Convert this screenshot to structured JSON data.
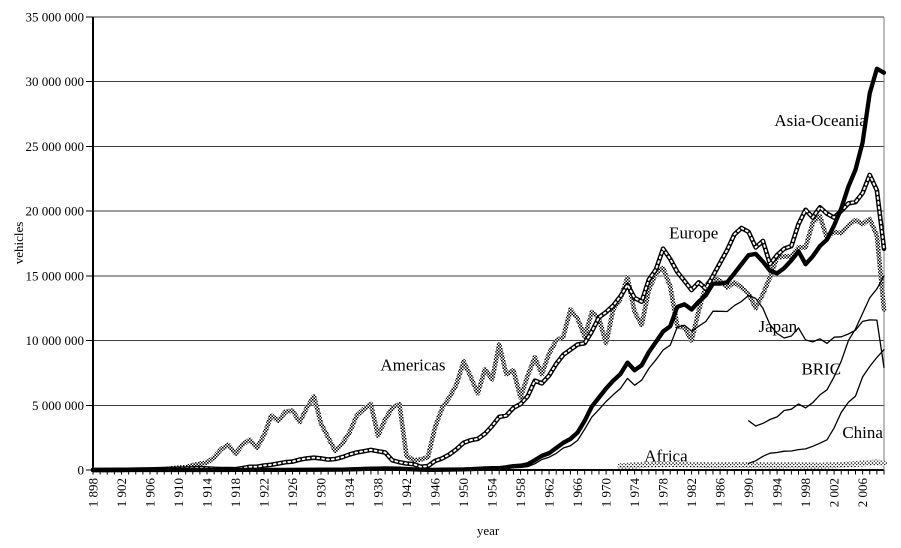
{
  "figure": {
    "background": "#ffffff",
    "line_color": "#000000",
    "grid_color": "#3f3f3f"
  },
  "chart_data": {
    "type": "line",
    "title": "",
    "xlabel": "year",
    "ylabel": "vehicles",
    "unit": "vehicles (series values stored in millions)",
    "x_range": [
      1898,
      2009
    ],
    "y_range": [
      0,
      35000000
    ],
    "grid": "horizontal",
    "legend": "inline-annotations",
    "y_ticks": {
      "values_millions": [
        0,
        5,
        10,
        15,
        20,
        25,
        30,
        35
      ],
      "labels": [
        "0",
        "5 000 000",
        "10 000 000",
        "15 000 000",
        "20 000 000",
        "25 000 000",
        "30 000 000",
        "35 000 000"
      ]
    },
    "x_ticks": {
      "minor_step_years": 1,
      "label_years": [
        1898,
        1902,
        1906,
        1910,
        1914,
        1918,
        1922,
        1926,
        1930,
        1934,
        1938,
        1942,
        1946,
        1950,
        1954,
        1958,
        1962,
        1966,
        1970,
        1974,
        1978,
        1982,
        1986,
        1990,
        1994,
        1998,
        2002,
        2006
      ],
      "labels": [
        "1 898",
        "1 902",
        "1 906",
        "1 910",
        "1 914",
        "1 918",
        "1 922",
        "1 926",
        "1 930",
        "1 934",
        "1 938",
        "1 942",
        "1 946",
        "1 950",
        "1 954",
        "1 958",
        "1 962",
        "1 966",
        "1 970",
        "1 974",
        "1 978",
        "1 982",
        "1 986",
        "1 990",
        "1 994",
        "1 998",
        "2 002",
        "2 006"
      ]
    },
    "x_main": [
      1898,
      1900,
      1902,
      1904,
      1906,
      1908,
      1910,
      1911,
      1912,
      1913,
      1914,
      1915,
      1916,
      1917,
      1918,
      1919,
      1920,
      1921,
      1922,
      1923,
      1924,
      1925,
      1926,
      1927,
      1928,
      1929,
      1930,
      1931,
      1932,
      1933,
      1934,
      1935,
      1936,
      1937,
      1938,
      1939,
      1940,
      1941,
      1942,
      1943,
      1944,
      1945,
      1946,
      1947,
      1948,
      1949,
      1950,
      1951,
      1952,
      1953,
      1954,
      1955,
      1956,
      1957,
      1958,
      1959,
      1960,
      1961,
      1962,
      1963,
      1964,
      1965,
      1966,
      1967,
      1968,
      1969,
      1970,
      1971,
      1972,
      1973,
      1974,
      1975,
      1976,
      1977,
      1978,
      1979,
      1980,
      1981,
      1982,
      1983,
      1984,
      1985,
      1986,
      1987,
      1988,
      1989,
      1990,
      1991,
      1992,
      1993,
      1994,
      1995,
      1996,
      1997,
      1998,
      1999,
      2000,
      2001,
      2002,
      2003,
      2004,
      2005,
      2006,
      2007,
      2008,
      2009
    ],
    "series": [
      {
        "name": "Africa",
        "style": "stipple-band",
        "x": [
          1972,
          1974,
          1976,
          1978,
          1980,
          1982,
          1984,
          1986,
          1988,
          1990,
          1992,
          1994,
          1996,
          1998,
          2000,
          2002,
          2004,
          2006,
          2007,
          2008,
          2009
        ],
        "y_millions": [
          0.3,
          0.35,
          0.4,
          0.45,
          0.47,
          0.42,
          0.38,
          0.36,
          0.4,
          0.38,
          0.36,
          0.35,
          0.38,
          0.35,
          0.33,
          0.37,
          0.43,
          0.5,
          0.54,
          0.58,
          0.52
        ]
      },
      {
        "name": "Americas",
        "style": "hatched-thick",
        "x_ref": "x_main",
        "y_millions": [
          0.001,
          0.005,
          0.009,
          0.022,
          0.034,
          0.065,
          0.18,
          0.21,
          0.38,
          0.49,
          0.57,
          0.97,
          1.62,
          1.95,
          1.25,
          1.97,
          2.35,
          1.7,
          2.7,
          4.2,
          3.8,
          4.5,
          4.6,
          3.7,
          4.8,
          5.7,
          3.6,
          2.5,
          1.45,
          2.05,
          2.9,
          4.2,
          4.7,
          5.1,
          2.65,
          3.9,
          4.8,
          5.1,
          1.1,
          0.75,
          0.8,
          1.0,
          3.3,
          4.8,
          5.6,
          6.6,
          8.4,
          7.2,
          5.9,
          7.8,
          7.0,
          9.7,
          7.4,
          7.7,
          5.6,
          7.3,
          8.7,
          7.4,
          9.0,
          10.0,
          10.3,
          12.4,
          11.7,
          10.3,
          12.2,
          11.7,
          9.8,
          12.4,
          13.2,
          14.9,
          12.2,
          11.2,
          13.9,
          15.2,
          15.6,
          14.2,
          11.1,
          11.0,
          10.0,
          12.3,
          14.2,
          14.9,
          14.6,
          14.1,
          14.5,
          14.1,
          13.6,
          12.5,
          13.6,
          14.9,
          16.4,
          16.5,
          16.5,
          17.2,
          17.2,
          19.1,
          19.6,
          17.9,
          18.4,
          18.3,
          18.9,
          19.3,
          19.0,
          19.4,
          18.1,
          12.4
        ]
      },
      {
        "name": "Europe",
        "style": "dotted-thick",
        "x_ref": "x_main",
        "y_millions": [
          0.002,
          0.008,
          0.015,
          0.025,
          0.05,
          0.07,
          0.1,
          0.11,
          0.13,
          0.15,
          0.12,
          0.09,
          0.08,
          0.07,
          0.06,
          0.15,
          0.25,
          0.25,
          0.35,
          0.4,
          0.5,
          0.6,
          0.65,
          0.8,
          0.9,
          0.95,
          0.9,
          0.8,
          0.85,
          1.0,
          1.2,
          1.35,
          1.45,
          1.55,
          1.45,
          1.35,
          0.75,
          0.6,
          0.5,
          0.45,
          0.25,
          0.3,
          0.7,
          0.9,
          1.2,
          1.6,
          2.1,
          2.3,
          2.4,
          2.8,
          3.4,
          4.1,
          4.2,
          4.8,
          5.1,
          5.7,
          6.9,
          6.7,
          7.3,
          8.2,
          8.9,
          9.3,
          9.7,
          9.8,
          10.7,
          11.8,
          12.2,
          12.7,
          13.4,
          14.3,
          13.3,
          13.0,
          14.7,
          15.5,
          17.1,
          16.3,
          15.3,
          14.6,
          13.9,
          14.5,
          14.0,
          15.0,
          16.0,
          17.0,
          18.2,
          18.7,
          18.4,
          17.2,
          17.7,
          15.9,
          16.6,
          17.1,
          17.3,
          19.0,
          20.1,
          19.5,
          20.3,
          19.8,
          19.5,
          20.0,
          20.6,
          20.7,
          21.4,
          22.8,
          21.6,
          17.1
        ]
      },
      {
        "name": "Asia-Oceania",
        "style": "solid-thick",
        "x": [
          1898,
          1905,
          1910,
          1915,
          1920,
          1925,
          1930,
          1933,
          1935,
          1937,
          1939,
          1941,
          1943,
          1945,
          1947,
          1949,
          1950,
          1951,
          1952,
          1953,
          1954,
          1955,
          1956,
          1957,
          1958,
          1959,
          1960,
          1961,
          1962,
          1963,
          1964,
          1965,
          1966,
          1967,
          1968,
          1969,
          1970,
          1971,
          1972,
          1973,
          1974,
          1975,
          1976,
          1977,
          1978,
          1979,
          1980,
          1981,
          1982,
          1983,
          1984,
          1985,
          1986,
          1987,
          1988,
          1989,
          1990,
          1991,
          1992,
          1993,
          1994,
          1995,
          1996,
          1997,
          1998,
          1999,
          2000,
          2001,
          2002,
          2003,
          2004,
          2005,
          2006,
          2007,
          2008,
          2009
        ],
        "y_millions": [
          0,
          0,
          0.001,
          0.002,
          0.005,
          0.01,
          0.02,
          0.03,
          0.06,
          0.1,
          0.12,
          0.1,
          0.05,
          0.01,
          0.02,
          0.04,
          0.05,
          0.07,
          0.09,
          0.12,
          0.14,
          0.15,
          0.22,
          0.3,
          0.33,
          0.45,
          0.76,
          1.1,
          1.3,
          1.7,
          2.1,
          2.4,
          2.9,
          3.8,
          4.9,
          5.6,
          6.3,
          6.9,
          7.4,
          8.3,
          7.7,
          8.1,
          9.1,
          9.9,
          10.7,
          11.1,
          12.6,
          12.8,
          12.4,
          13.0,
          13.5,
          14.4,
          14.4,
          14.5,
          15.2,
          15.9,
          16.6,
          16.7,
          16.1,
          15.4,
          15.2,
          15.6,
          16.2,
          16.9,
          15.9,
          16.5,
          17.3,
          17.8,
          18.9,
          20.2,
          21.9,
          23.2,
          25.3,
          29.1,
          31.0,
          30.7
        ]
      },
      {
        "name": "China",
        "style": "thin",
        "x": [
          1990,
          1991,
          1992,
          1993,
          1994,
          1995,
          1996,
          1997,
          1998,
          1999,
          2000,
          2001,
          2002,
          2003,
          2004,
          2005,
          2006,
          2007,
          2008,
          2009
        ],
        "y_millions": [
          0.51,
          0.71,
          1.06,
          1.3,
          1.35,
          1.45,
          1.47,
          1.58,
          1.63,
          1.83,
          2.07,
          2.33,
          3.25,
          4.44,
          5.23,
          5.71,
          7.19,
          8.0,
          8.7,
          9.3
        ]
      },
      {
        "name": "BRIC",
        "style": "thin",
        "x": [
          1990,
          1991,
          1992,
          1993,
          1994,
          1995,
          1996,
          1997,
          1998,
          1999,
          2000,
          2001,
          2002,
          2003,
          2004,
          2005,
          2006,
          2007,
          2008,
          2009
        ],
        "y_millions": [
          3.8,
          3.4,
          3.6,
          3.9,
          4.1,
          4.6,
          4.7,
          5.1,
          4.8,
          5.2,
          5.8,
          6.2,
          7.2,
          8.4,
          10.0,
          10.9,
          12.1,
          13.3,
          14.0,
          15.0
        ]
      },
      {
        "name": "Japan",
        "style": "thin",
        "x": [
          1946,
          1948,
          1950,
          1952,
          1954,
          1956,
          1957,
          1958,
          1959,
          1960,
          1961,
          1962,
          1963,
          1964,
          1965,
          1966,
          1967,
          1968,
          1969,
          1970,
          1971,
          1972,
          1973,
          1974,
          1975,
          1976,
          1977,
          1978,
          1979,
          1980,
          1981,
          1982,
          1983,
          1984,
          1985,
          1986,
          1987,
          1988,
          1989,
          1990,
          1991,
          1992,
          1993,
          1994,
          1995,
          1996,
          1997,
          1998,
          1999,
          2000,
          2001,
          2002,
          2003,
          2004,
          2005,
          2006,
          2007,
          2008,
          2009
        ],
        "y_millions": [
          0.01,
          0.02,
          0.03,
          0.04,
          0.07,
          0.11,
          0.18,
          0.19,
          0.26,
          0.48,
          0.81,
          0.99,
          1.28,
          1.7,
          1.88,
          2.29,
          3.15,
          4.09,
          4.68,
          5.29,
          5.81,
          6.29,
          7.08,
          6.55,
          6.94,
          7.84,
          8.52,
          9.27,
          9.64,
          11.04,
          11.18,
          10.73,
          11.11,
          11.47,
          12.27,
          12.26,
          12.25,
          12.7,
          13.03,
          13.49,
          13.25,
          12.5,
          11.23,
          10.55,
          10.2,
          10.35,
          10.98,
          10.05,
          9.9,
          10.14,
          9.78,
          10.26,
          10.29,
          10.51,
          10.8,
          11.48,
          11.6,
          11.58,
          7.93
        ]
      }
    ],
    "annotations": [
      {
        "label": "Asia-Oceania",
        "year": 2000.1,
        "value_millions": 27.0
      },
      {
        "label": "Europe",
        "year": 1982.3,
        "value_millions": 18.3
      },
      {
        "label": "Americas",
        "year": 1942.9,
        "value_millions": 8.1
      },
      {
        "label": "Japan",
        "year": 1994.1,
        "value_millions": 11.1
      },
      {
        "label": "BRIC",
        "year": 2000.2,
        "value_millions": 7.8
      },
      {
        "label": "China",
        "year": 2006.0,
        "value_millions": 2.9
      },
      {
        "label": "Africa",
        "year": 1978.4,
        "value_millions": 1.1
      }
    ]
  }
}
